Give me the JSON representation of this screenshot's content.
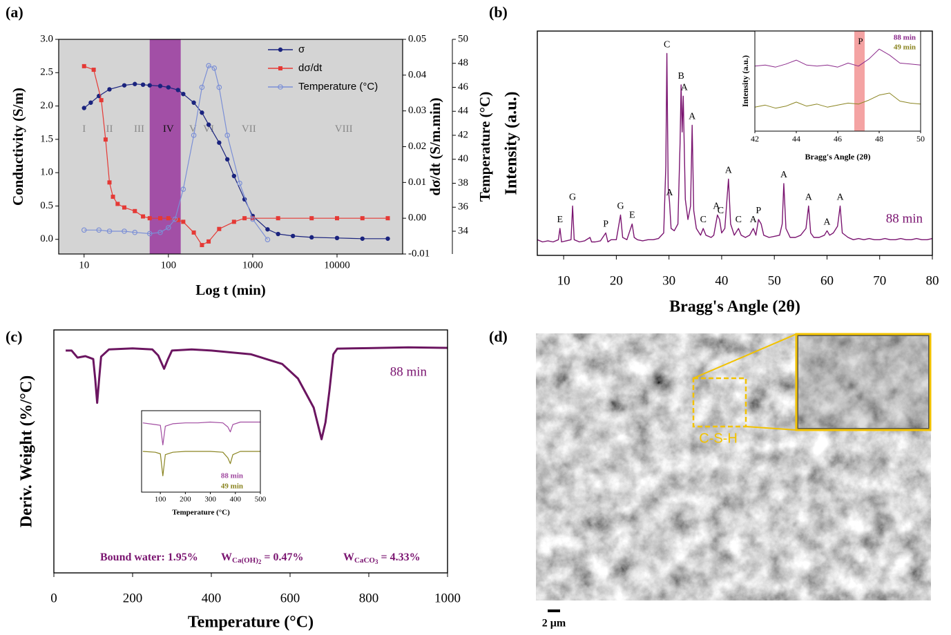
{
  "chart_data": [
    {
      "type": "line",
      "panel_label": "(a)",
      "x_label": "Log t (min)",
      "y_label": "Conductivity (S/m)",
      "y2_label": "dσ/dt (S/m.min)",
      "y3_label": "Temperature (°C)",
      "xscale": "log",
      "xlim": [
        5,
        60000
      ],
      "xticks": [
        10,
        100,
        1000,
        10000
      ],
      "ylim": [
        -0.22,
        3.0
      ],
      "yticks": [
        {
          "value": 0,
          "label": "0.0"
        },
        0.5,
        {
          "value": 1,
          "label": "1.0"
        },
        1.5,
        {
          "value": 2,
          "label": "2.0"
        },
        2.5,
        {
          "value": 3,
          "label": "3.0"
        }
      ],
      "y2lim": [
        -0.01,
        0.05
      ],
      "y2ticks": [
        -0.01,
        {
          "value": 0,
          "label": "0.00"
        },
        0.01,
        0.02,
        0.03,
        0.04,
        0.05
      ],
      "y3lim": [
        32.1,
        50
      ],
      "y3ticks": [
        34,
        36,
        38,
        40,
        42,
        44,
        46,
        48,
        50
      ],
      "background": "#d4d4d4",
      "highlight": {
        "range": [
          60,
          140
        ],
        "color": "#a24fa6"
      },
      "region_labels": [
        {
          "label": "I",
          "x": 10
        },
        {
          "label": "II",
          "x": 20
        },
        {
          "label": "III",
          "x": 45
        },
        {
          "label": "IV",
          "x": 100
        },
        {
          "label": "V",
          "x": 195
        },
        {
          "label": "VI",
          "x": 300
        },
        {
          "label": "VII",
          "x": 900
        },
        {
          "label": "VIII",
          "x": 12000
        }
      ],
      "legend": "upper right",
      "series": [
        {
          "name": "σ",
          "color": "#1a237e",
          "marker": "filled-circle",
          "x": [
            10,
            12,
            15,
            20,
            30,
            40,
            50,
            60,
            80,
            100,
            130,
            150,
            200,
            250,
            300,
            400,
            500,
            600,
            800,
            1000,
            1500,
            2000,
            3000,
            5000,
            10000,
            20000,
            40000
          ],
          "values": [
            1.97,
            2.05,
            2.15,
            2.25,
            2.31,
            2.33,
            2.32,
            2.31,
            2.3,
            2.28,
            2.24,
            2.18,
            2.05,
            1.9,
            1.72,
            1.45,
            1.2,
            0.95,
            0.6,
            0.35,
            0.15,
            0.08,
            0.05,
            0.03,
            0.02,
            0.01,
            0.01
          ]
        },
        {
          "name": "dσ/dt",
          "color": "#e53935",
          "marker": "filled-square",
          "axis": "y2",
          "x": [
            10,
            13,
            16,
            18,
            20,
            22,
            25,
            30,
            40,
            50,
            60,
            80,
            100,
            130,
            150,
            200,
            250,
            300,
            400,
            600,
            800,
            1000,
            2000,
            5000,
            10000,
            20000,
            40000
          ],
          "values": [
            0.0425,
            0.0415,
            0.033,
            0.022,
            0.01,
            0.006,
            0.004,
            0.003,
            0.002,
            0.0005,
            0.0,
            0.0,
            0.0,
            -0.0005,
            -0.001,
            -0.004,
            -0.0075,
            -0.0065,
            -0.003,
            -0.001,
            0.0,
            0.0,
            0.0,
            0.0,
            0.0,
            0.0,
            0.0
          ]
        },
        {
          "name": "Temperature (°C)",
          "color": "#7b8fd6",
          "marker": "open-circle",
          "axis": "y3",
          "x": [
            10,
            15,
            20,
            30,
            40,
            60,
            80,
            100,
            120,
            150,
            200,
            250,
            300,
            350,
            400,
            500,
            700,
            1000,
            1500
          ],
          "values": [
            34.1,
            34.1,
            34.0,
            34.0,
            33.9,
            33.8,
            33.9,
            34.3,
            35.0,
            37.5,
            42.0,
            46.0,
            47.8,
            47.6,
            46.0,
            42.0,
            38.0,
            35.0,
            33.3
          ]
        }
      ]
    },
    {
      "type": "line",
      "panel_label": "(b)",
      "x_label": "Bragg's Angle (2θ)",
      "y_label": "Intensity (a.u.)",
      "annotation": "88  min",
      "xlim": [
        5,
        80
      ],
      "xticks": [
        10,
        20,
        30,
        40,
        50,
        60,
        70,
        80
      ],
      "ylim": [
        0,
        100
      ],
      "series": [
        {
          "color": "#7a1470",
          "x": [
            5,
            6,
            7,
            8,
            9,
            9.3,
            9.6,
            10.5,
            11.4,
            11.7,
            12,
            13,
            14,
            15,
            15.3,
            16,
            17,
            18,
            18.4,
            19,
            20,
            20.8,
            21.2,
            22,
            23,
            23.4,
            24,
            25,
            26,
            27,
            28,
            29,
            29.4,
            29.6,
            29.85,
            30.1,
            30.4,
            31,
            31.7,
            32.1,
            32.3,
            32.5,
            32.7,
            33.1,
            33.6,
            34.1,
            34.4,
            34.7,
            35.2,
            36,
            36.5,
            37,
            38,
            38.5,
            39.2,
            39.6,
            40,
            40.6,
            41.3,
            41.7,
            42.4,
            43.2,
            43.7,
            44.5,
            45.3,
            46,
            46.5,
            47,
            47.5,
            48,
            49,
            50,
            51,
            51.5,
            51.8,
            52.2,
            53,
            54,
            55,
            56,
            56.5,
            56.9,
            57.5,
            58.5,
            59.5,
            60,
            60.5,
            61.2,
            62,
            62.5,
            62.9,
            64,
            65,
            66,
            67,
            68,
            69,
            70,
            71,
            72,
            73,
            74,
            75,
            76,
            77,
            78,
            79,
            80
          ],
          "values": [
            7,
            6,
            6.5,
            6,
            7,
            12,
            6,
            6.5,
            7,
            22,
            7,
            6,
            6.5,
            8,
            6,
            6,
            6.5,
            10,
            6,
            7,
            7,
            18,
            8,
            7,
            14,
            8,
            7,
            6.5,
            7,
            7,
            7.5,
            10,
            40,
            90,
            30,
            24,
            12,
            11,
            14,
            50,
            76,
            55,
            71,
            25,
            16,
            22,
            58,
            20,
            12,
            9,
            12,
            9,
            8,
            9,
            18,
            16,
            10,
            12,
            34,
            14,
            9,
            12,
            9,
            8,
            9,
            12,
            9,
            16,
            14,
            9,
            8,
            8.5,
            9,
            14,
            32,
            12,
            8,
            8,
            9,
            12,
            22,
            10,
            8,
            8,
            9,
            11,
            9,
            10,
            13,
            22,
            10,
            8,
            7,
            7.5,
            7,
            7.5,
            7,
            7,
            7.5,
            7,
            7,
            7.5,
            7,
            7,
            7.5,
            7,
            7,
            7.5
          ]
        }
      ],
      "peak_labels": [
        {
          "label": "E",
          "x": 9.3,
          "y": 12
        },
        {
          "label": "G",
          "x": 11.7,
          "y": 22
        },
        {
          "label": "P",
          "x": 18,
          "y": 10
        },
        {
          "label": "G",
          "x": 20.8,
          "y": 18
        },
        {
          "label": "E",
          "x": 23,
          "y": 14
        },
        {
          "label": "C",
          "x": 29.6,
          "y": 90
        },
        {
          "label": "A",
          "x": 30.1,
          "y": 24
        },
        {
          "label": "B",
          "x": 32.3,
          "y": 76
        },
        {
          "label": "A",
          "x": 32.9,
          "y": 71
        },
        {
          "label": "A",
          "x": 34.4,
          "y": 58
        },
        {
          "label": "C",
          "x": 36.5,
          "y": 12
        },
        {
          "label": "A",
          "x": 39,
          "y": 18
        },
        {
          "label": "C",
          "x": 39.8,
          "y": 16
        },
        {
          "label": "A",
          "x": 41.3,
          "y": 34
        },
        {
          "label": "C",
          "x": 43.2,
          "y": 12
        },
        {
          "label": "A",
          "x": 46,
          "y": 12
        },
        {
          "label": "P",
          "x": 47,
          "y": 16
        },
        {
          "label": "A",
          "x": 51.8,
          "y": 32
        },
        {
          "label": "A",
          "x": 56.5,
          "y": 22
        },
        {
          "label": "A",
          "x": 60,
          "y": 11
        },
        {
          "label": "A",
          "x": 62.5,
          "y": 22
        }
      ],
      "inset": {
        "type": "line",
        "x_label": "Bragg's Angle (2θ)",
        "y_label": "Intensity (a.u.)",
        "xlim": [
          42,
          50
        ],
        "xticks": [
          42,
          44,
          46,
          48,
          50
        ],
        "ylim": [
          0,
          10
        ],
        "highlight": {
          "range": [
            46.8,
            47.3
          ],
          "color": "#f4a3a3"
        },
        "peak_labels": [
          {
            "label": "P",
            "x": 47.1,
            "y": 8.2
          }
        ],
        "series": [
          {
            "name": "88 min",
            "color": "#8b2a8b",
            "x": [
              42,
              42.5,
              43,
              43.5,
              44,
              44.5,
              45,
              45.5,
              46,
              46.5,
              47,
              47.5,
              48,
              48.5,
              49,
              49.5,
              50
            ],
            "values": [
              6.5,
              6.6,
              6.4,
              6.7,
              7.1,
              6.6,
              6.5,
              6.6,
              6.4,
              6.8,
              6.5,
              7.2,
              8.2,
              7.6,
              6.8,
              6.7,
              6.6
            ]
          },
          {
            "name": "49 min",
            "color": "#8a8420",
            "x": [
              42,
              42.5,
              43,
              43.5,
              44,
              44.5,
              45,
              45.5,
              46,
              46.5,
              47,
              47.5,
              48,
              48.5,
              49,
              49.5,
              50
            ],
            "values": [
              2.4,
              2.6,
              2.3,
              2.5,
              2.9,
              2.5,
              2.7,
              2.4,
              2.6,
              2.8,
              2.7,
              3.1,
              3.6,
              3.8,
              3.0,
              2.8,
              2.7
            ]
          }
        ]
      }
    },
    {
      "type": "line",
      "panel_label": "(c)",
      "x_label": "Temperature (°C)",
      "y_label": "Deriv. Weight (%/°C)",
      "annotation": "88 min",
      "xlim": [
        0,
        1000
      ],
      "xticks": [
        0,
        200,
        400,
        600,
        800,
        1000
      ],
      "ylim": [
        0,
        100
      ],
      "series": [
        {
          "color": "#6b1560",
          "x": [
            30,
            45,
            60,
            80,
            100,
            105,
            110,
            115,
            120,
            140,
            200,
            250,
            265,
            280,
            290,
            300,
            350,
            400,
            500,
            580,
            620,
            660,
            680,
            690,
            700,
            710,
            720,
            800,
            900,
            1000
          ],
          "values": [
            91.5,
            91.5,
            88.6,
            89.2,
            88,
            80,
            70,
            80,
            89,
            92,
            92.4,
            92,
            89.5,
            84,
            88,
            91.5,
            92,
            91.5,
            90,
            86,
            80,
            68,
            55,
            62,
            75,
            90,
            92.3,
            92.5,
            92.8,
            92.6
          ]
        }
      ],
      "stats": [
        {
          "prefix": "Bound water: 1.95%"
        },
        {
          "prefix": "W",
          "sub": "Ca(OH)",
          "subsub": "2",
          "suffix": " = 0.47%"
        },
        {
          "prefix": "W",
          "sub": "CaCO",
          "subsub": "3",
          "suffix": " = 4.33%"
        }
      ],
      "inset": {
        "type": "line",
        "x_label": "Temperature (°C)",
        "xlim": [
          25,
          500
        ],
        "xticks": [
          100,
          200,
          300,
          400,
          500
        ],
        "ylim": [
          0,
          10
        ],
        "series": [
          {
            "name": "88 min",
            "color": "#a04aa0",
            "x": [
              30,
              80,
              100,
              110,
              120,
              150,
              200,
              250,
              300,
              350,
              370,
              380,
              390,
              420,
              500
            ],
            "values": [
              8.5,
              8.3,
              8.2,
              5.8,
              8.1,
              8.4,
              8.5,
              8.5,
              8.6,
              8.5,
              8.0,
              7.4,
              8.3,
              8.6,
              8.6
            ]
          },
          {
            "name": "49 min",
            "color": "#8a8420",
            "x": [
              30,
              80,
              100,
              110,
              120,
              150,
              200,
              250,
              300,
              350,
              370,
              380,
              390,
              420,
              500
            ],
            "values": [
              5.0,
              4.9,
              4.7,
              2.0,
              4.6,
              4.9,
              5.0,
              5.0,
              5.0,
              4.9,
              4.2,
              3.5,
              4.6,
              5.0,
              5.0
            ]
          }
        ]
      }
    }
  ],
  "image_panel": {
    "panel_label": "(d)",
    "annotation": "C-S-H",
    "scale_bar": "2 μm"
  }
}
